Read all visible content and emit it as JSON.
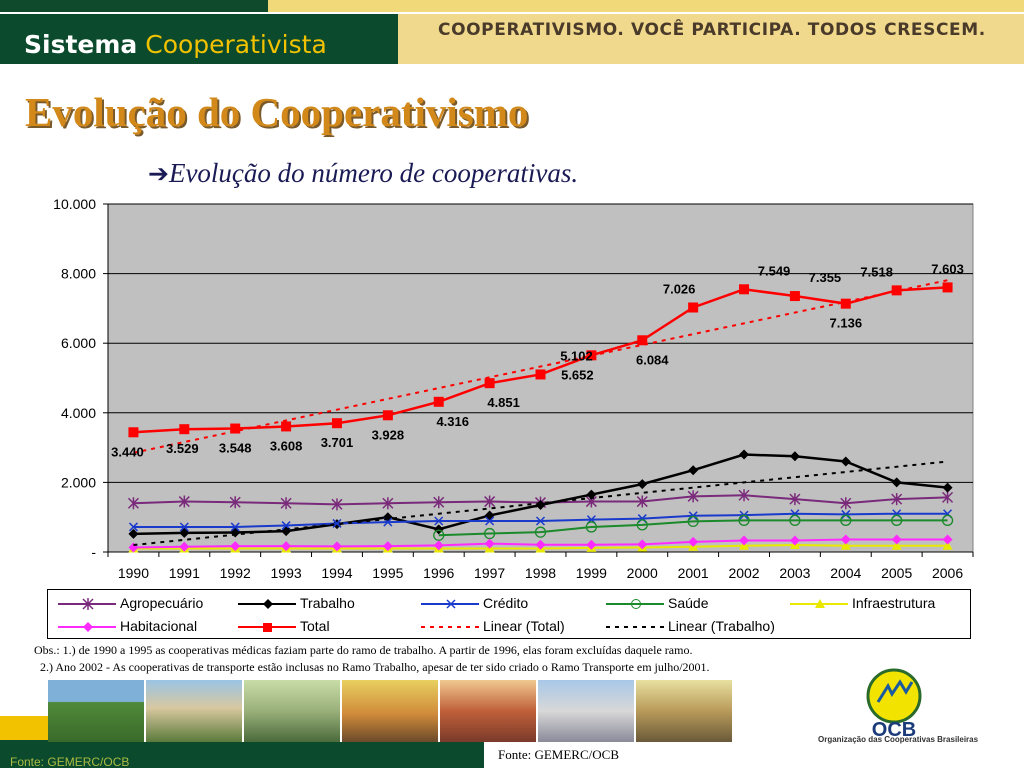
{
  "header": {
    "brand_bold": "Sistema",
    "brand_light": "Cooperativista",
    "slogan": "COOPERATIVISMO. VOCÊ PARTICIPA. TODOS CRESCEM."
  },
  "title": "Evolução do Cooperativismo",
  "subtitle": "Evolução do número de cooperativas.",
  "chart_data": {
    "type": "line",
    "title": "Evolução do número de cooperativas.",
    "xlabel": "",
    "ylabel": "",
    "ylim": [
      0,
      10000
    ],
    "y_tick_labels": [
      "-",
      "2.000",
      "4.000",
      "6.000",
      "8.000",
      "10.000"
    ],
    "y_tick_values": [
      0,
      2000,
      4000,
      6000,
      8000,
      10000
    ],
    "grid": true,
    "legend_position": "bottom",
    "categories": [
      "1990",
      "1991",
      "1992",
      "1993",
      "1994",
      "1995",
      "1996",
      "1997",
      "1998",
      "1999",
      "2000",
      "2001",
      "2002",
      "2003",
      "2004",
      "2005",
      "2006"
    ],
    "series": [
      {
        "name": "Agropecuário",
        "color": "#7a2a7a",
        "marker": "star",
        "values": [
          1400,
          1450,
          1430,
          1400,
          1370,
          1400,
          1430,
          1450,
          1420,
          1450,
          1450,
          1600,
          1630,
          1520,
          1400,
          1520,
          1570
        ]
      },
      {
        "name": "Trabalho",
        "color": "#000000",
        "marker": "diamond",
        "values": [
          520,
          550,
          560,
          600,
          800,
          1000,
          650,
          1050,
          1350,
          1650,
          1950,
          2350,
          2800,
          2750,
          2600,
          2000,
          1850
        ]
      },
      {
        "name": "Crédito",
        "color": "#1a3acc",
        "marker": "x",
        "values": [
          720,
          720,
          720,
          760,
          820,
          860,
          890,
          890,
          890,
          930,
          960,
          1040,
          1060,
          1100,
          1080,
          1100,
          1100
        ]
      },
      {
        "name": "Saúde",
        "color": "#1a8a2a",
        "marker": "circle",
        "values": [
          null,
          null,
          null,
          null,
          null,
          null,
          480,
          530,
          570,
          720,
          780,
          880,
          910,
          910,
          910,
          910,
          910
        ]
      },
      {
        "name": "Infraestrutura",
        "color": "#e8e800",
        "marker": "triangle",
        "values": [
          100,
          100,
          100,
          100,
          100,
          100,
          100,
          100,
          100,
          120,
          130,
          150,
          180,
          200,
          180,
          180,
          180
        ]
      },
      {
        "name": "Habitacional",
        "color": "#ff2aff",
        "marker": "diamond",
        "values": [
          130,
          150,
          170,
          170,
          160,
          170,
          190,
          240,
          210,
          210,
          220,
          290,
          330,
          330,
          360,
          360,
          360
        ]
      },
      {
        "name": "Total",
        "color": "#ff0000",
        "marker": "square",
        "values": [
          3440,
          3529,
          3548,
          3608,
          3701,
          3928,
          4316,
          4851,
          5102,
          5652,
          6084,
          7026,
          7549,
          7355,
          7136,
          7518,
          7603
        ]
      },
      {
        "name": "Linear (Total)",
        "color": "#ff0000",
        "dash": true,
        "values": [
          2850,
          3160,
          3470,
          3780,
          4090,
          4400,
          4710,
          5020,
          5330,
          5640,
          5950,
          6260,
          6570,
          6880,
          7190,
          7500,
          7810
        ]
      },
      {
        "name": "Linear (Trabalho)",
        "color": "#000000",
        "dash": true,
        "values": [
          200,
          350,
          500,
          650,
          800,
          950,
          1100,
          1250,
          1400,
          1550,
          1700,
          1850,
          2000,
          2150,
          2300,
          2450,
          2600
        ]
      }
    ],
    "data_labels": [
      "3.440",
      "3.529",
      "3.548",
      "3.608",
      "3.701",
      "3.928",
      "4.316",
      "4.851",
      "5.102",
      "5.652",
      "6.084",
      "7.026",
      "7.549",
      "7.355",
      "7.136",
      "7.518",
      "7.603"
    ]
  },
  "notes": {
    "line1": "Obs.: 1.) de 1990 a 1995 as cooperativas médicas faziam parte do ramo de trabalho. A partir de 1996, elas foram excluídas daquele ramo.",
    "line2": "2.) Ano 2002 -  As cooperativas de transporte estão inclusas no Ramo Trabalho, apesar de ter sido criado o Ramo Transporte  em julho/2001."
  },
  "source_right": "Fonte: GEMERC/OCB",
  "source_left": "Fonte: GEMERC/OCB",
  "logo": {
    "name": "OCB",
    "org": "Organização das Cooperativas Brasileiras"
  },
  "colors": {
    "brand_green": "#0b4a2c",
    "brand_yellow": "#f2c200",
    "title_orange": "#d2891a",
    "plot_bg": "#c0c0c0"
  }
}
